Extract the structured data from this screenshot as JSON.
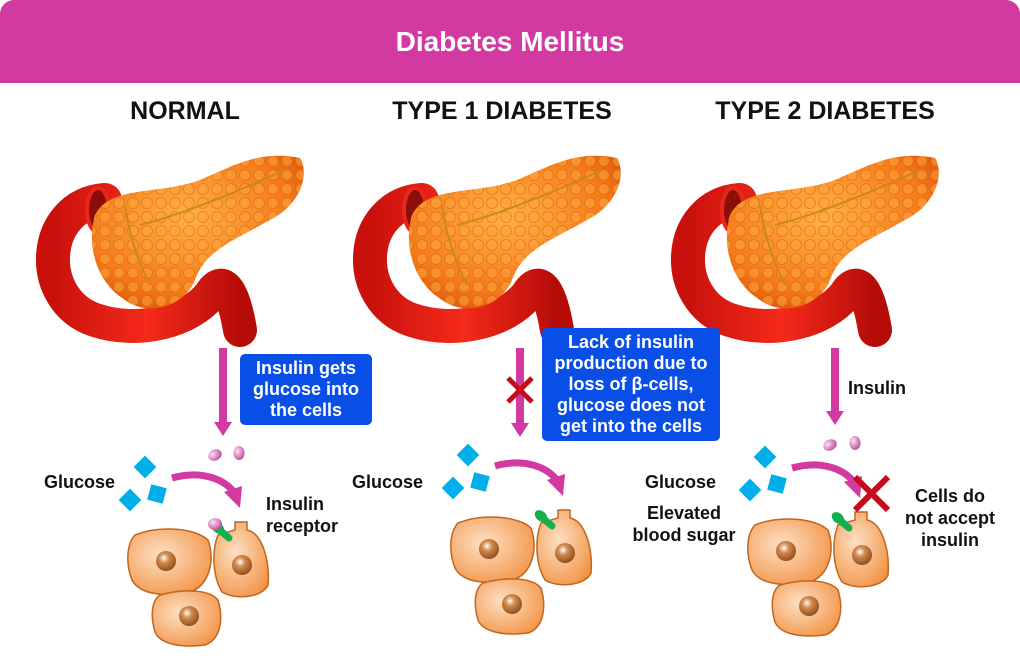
{
  "header": {
    "title": "Diabetes Mellitus",
    "color": "#d23aa2"
  },
  "panels": [
    {
      "title": "NORMAL",
      "glucose_label": "Glucose",
      "receptor_label": "Insulin\nreceptor",
      "note": "Insulin gets glucose into the cells"
    },
    {
      "title": "TYPE 1 DIABETES",
      "glucose_label": "Glucose",
      "note": "Lack of insulin production due to loss of β-cells, glucose does not get into the cells"
    },
    {
      "title": "TYPE 2 DIABETES",
      "glucose_label": "Glucose",
      "elevated_label": "Elevated blood sugar",
      "insulin_label": "Insulin",
      "reject_label": "Cells do not accept insulin"
    }
  ],
  "colors": {
    "arrow": "#d23aa2",
    "note_box": "#0a4ee8",
    "glucose": "#00aeea",
    "cell": "#f5a45f",
    "receptor": "#12b04c",
    "block_x": "#c40c1a"
  }
}
